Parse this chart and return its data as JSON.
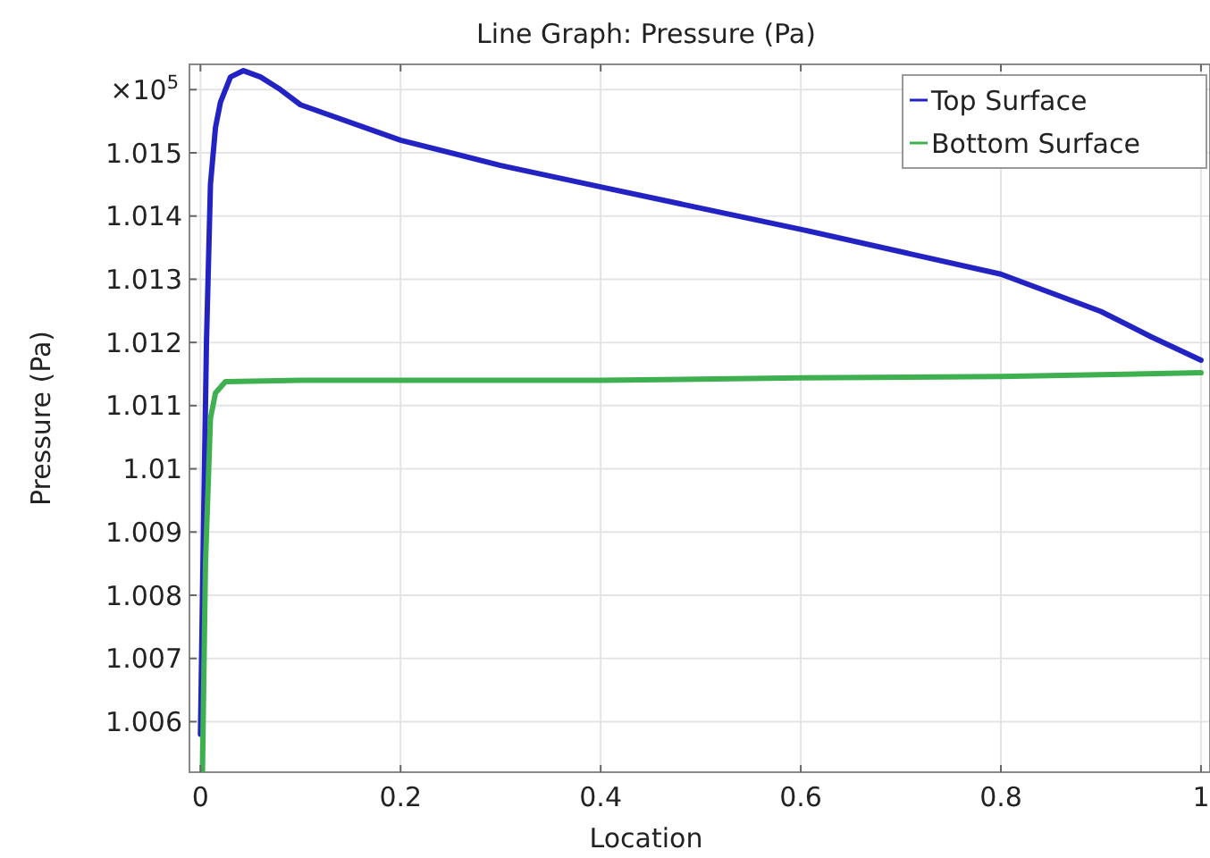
{
  "chart_data": {
    "type": "line",
    "title": "Line Graph: Pressure (Pa)",
    "xlabel": "Location",
    "ylabel": "Pressure (Pa)",
    "annotations": [
      "×10$^{5}$"
    ],
    "xlim": [
      -0.011,
      1.009
    ],
    "xticks": [
      0,
      0.2,
      0.4,
      0.6,
      0.8,
      1
    ],
    "ylim": [
      1.0052,
      1.0164
    ],
    "yticks": [
      1.006,
      1.007,
      1.008,
      1.009,
      1.01,
      1.011,
      1.012,
      1.013,
      1.014,
      1.015,
      {
        "value": 1.016,
        "label": null
      }
    ],
    "grid": true,
    "legend": "top right",
    "marker": "none",
    "line_style": "solid",
    "series": [
      {
        "name": "Top Surface",
        "color": "#2323c4",
        "x": [
          0,
          0.003,
          0.006,
          0.01,
          0.015,
          0.02,
          0.03,
          0.043,
          0.06,
          0.08,
          0.1,
          0.2,
          0.3,
          0.4,
          0.6,
          0.8,
          0.9,
          0.95,
          1.0
        ],
        "values": [
          1.0058,
          1.009,
          1.012,
          1.0145,
          1.0154,
          1.0158,
          1.0162,
          1.0163,
          1.0162,
          1.016,
          1.01576,
          1.0152,
          1.0148,
          1.01446,
          1.01379,
          1.01308,
          1.01249,
          1.01209,
          1.01172
        ]
      },
      {
        "name": "Bottom Surface",
        "color": "#3fb04f",
        "x": [
          0.002,
          0.005,
          0.01,
          0.015,
          0.025,
          0.1,
          0.4,
          0.6,
          0.8,
          1.0
        ],
        "values": [
          1.0052,
          1.0085,
          1.0108,
          1.0112,
          1.01138,
          1.0114,
          1.0114,
          1.01144,
          1.01146,
          1.01152
        ]
      }
    ]
  }
}
